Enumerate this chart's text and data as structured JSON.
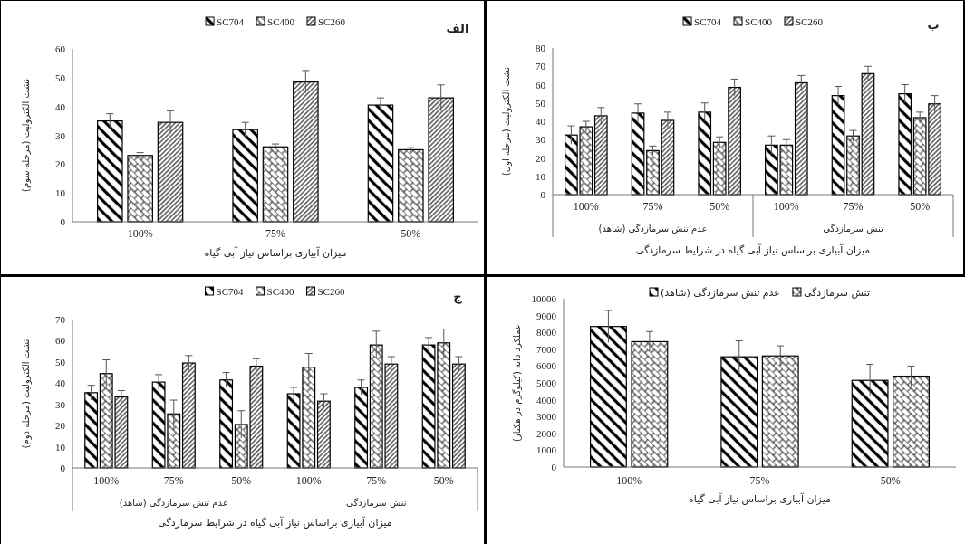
{
  "chart_data": [
    {
      "type": "bar",
      "title": "الف",
      "xlabel": "میزان آبیاری براساس نیاز آبی گیاه",
      "ylabel": "نشت الکترولیت (مرحله سوم)",
      "categories": [
        "100%",
        "75%",
        "50%"
      ],
      "ylim": [
        0,
        60
      ],
      "yticks": [
        0,
        10,
        20,
        30,
        40,
        50,
        60
      ],
      "legend": "top",
      "series": [
        {
          "name": "SC704",
          "color": "#000000",
          "values": [
            35,
            32,
            40.5
          ],
          "errors": [
            2.5,
            2.5,
            2.5
          ]
        },
        {
          "name": "SC400",
          "color": "#000000",
          "values": [
            23,
            26,
            25
          ],
          "errors": [
            1,
            1,
            0.7
          ]
        },
        {
          "name": "SC260",
          "color": "#000000",
          "values": [
            34.5,
            48.5,
            43
          ],
          "errors": [
            4,
            4,
            4.5
          ]
        }
      ]
    },
    {
      "type": "bar",
      "title": "ب",
      "xlabel": "میزان آبیاری براساس نیاز آبی گیاه در شرایط سرمازدگی",
      "ylabel": "نشت الکترولیت (مرحله اول)",
      "categories": [
        "100%",
        "75%",
        "50%",
        "100%",
        "75%",
        "50%"
      ],
      "annotations": [
        "عدم تنش سرمازدگی (شاهد)",
        "تنش سرمازدگی"
      ],
      "ylim": [
        0,
        80
      ],
      "yticks": [
        0,
        10,
        20,
        30,
        40,
        50,
        60,
        70,
        80
      ],
      "legend": "top",
      "series": [
        {
          "name": "SC704",
          "color": "#000000",
          "values": [
            32.5,
            44.5,
            45,
            27,
            54,
            55
          ],
          "errors": [
            5,
            5,
            5,
            5,
            5,
            5
          ]
        },
        {
          "name": "SC400",
          "color": "#000000",
          "values": [
            37,
            24,
            28.5,
            27,
            32,
            42
          ],
          "errors": [
            3,
            2.5,
            3,
            3,
            3,
            3
          ]
        },
        {
          "name": "SC260",
          "color": "#000000",
          "values": [
            43,
            40.5,
            58.5,
            61,
            66,
            49.5
          ],
          "errors": [
            4.5,
            4.5,
            4.5,
            4,
            4,
            4.5
          ]
        }
      ]
    },
    {
      "type": "bar",
      "title": "ج",
      "xlabel": "میزان آبیاری براساس نیاز آبی گیاه در شرایط سرمازدگی",
      "ylabel": "نشت الکترولیت (مرحله دوم)",
      "categories": [
        "100%",
        "75%",
        "50%",
        "100%",
        "75%",
        "50%"
      ],
      "annotations": [
        "عدم تنش سرمازدگی (شاهد)",
        "تنش سرمازدگی"
      ],
      "ylim": [
        0,
        70
      ],
      "yticks": [
        0,
        10,
        20,
        30,
        40,
        50,
        60,
        70
      ],
      "legend": "top",
      "series": [
        {
          "name": "SC704",
          "color": "#000000",
          "values": [
            35.5,
            40.5,
            41.5,
            35,
            38,
            58
          ],
          "errors": [
            3.5,
            3.5,
            3.5,
            3,
            3.5,
            3.5
          ]
        },
        {
          "name": "SC400",
          "color": "#000000",
          "values": [
            44.5,
            25.5,
            20.5,
            47.5,
            58,
            59
          ],
          "errors": [
            6.5,
            6.5,
            6.5,
            6.5,
            6.5,
            6.5
          ]
        },
        {
          "name": "SC260",
          "color": "#000000",
          "values": [
            33.5,
            49.5,
            48,
            31.5,
            49,
            49
          ],
          "errors": [
            3,
            3.5,
            3.5,
            3.5,
            3.5,
            3.5
          ]
        }
      ]
    },
    {
      "type": "bar",
      "xlabel": "میزان آبیاری براساس نیاز آبی گیاه",
      "ylabel": "عملکرد دانه (کیلوگرم در هکتار)",
      "categories": [
        "100%",
        "75%",
        "50%"
      ],
      "ylim": [
        0,
        10000
      ],
      "yticks": [
        0,
        1000,
        2000,
        3000,
        4000,
        5000,
        6000,
        7000,
        8000,
        9000,
        10000
      ],
      "legend": "top",
      "series": [
        {
          "name": "عدم تنش سرمازدگی (شاهد)",
          "color": "#000000",
          "values": [
            8350,
            6550,
            5150
          ],
          "errors": [
            950,
            950,
            950
          ]
        },
        {
          "name": "تنش سرمازدگی",
          "color": "#000000",
          "values": [
            7450,
            6600,
            5400
          ],
          "errors": [
            600,
            600,
            600
          ]
        }
      ]
    }
  ]
}
